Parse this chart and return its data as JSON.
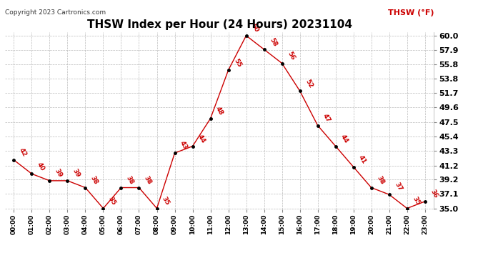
{
  "title": "THSW Index per Hour (24 Hours) 20231104",
  "copyright": "Copyright 2023 Cartronics.com",
  "legend_label": "THSW (°F)",
  "hours": [
    "00:00",
    "01:00",
    "02:00",
    "03:00",
    "04:00",
    "05:00",
    "06:00",
    "07:00",
    "08:00",
    "09:00",
    "10:00",
    "11:00",
    "12:00",
    "13:00",
    "14:00",
    "15:00",
    "16:00",
    "17:00",
    "18:00",
    "19:00",
    "20:00",
    "21:00",
    "22:00",
    "23:00"
  ],
  "values": [
    42,
    40,
    39,
    39,
    38,
    35,
    38,
    38,
    35,
    43,
    44,
    48,
    55,
    60,
    58,
    56,
    52,
    47,
    44,
    41,
    38,
    37,
    35,
    36
  ],
  "ylim_min": 35.0,
  "ylim_max": 60.0,
  "yticks": [
    35.0,
    37.1,
    39.2,
    41.2,
    43.3,
    45.4,
    47.5,
    49.6,
    51.7,
    53.8,
    55.8,
    57.9,
    60.0
  ],
  "line_color": "#cc0000",
  "marker_color": "#000000",
  "annotation_color": "#cc0000",
  "grid_color": "#bbbbbb",
  "background_color": "#ffffff",
  "title_fontsize": 11,
  "copyright_fontsize": 6.5,
  "legend_fontsize": 8,
  "annotation_fontsize": 6.5,
  "yticklabel_fontsize": 8,
  "xticklabel_fontsize": 6.5
}
